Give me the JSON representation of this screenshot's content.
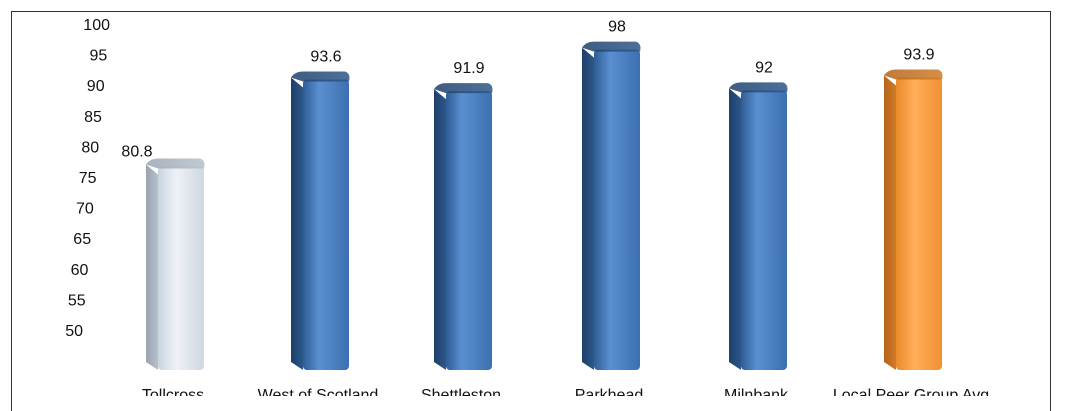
{
  "chart_data": {
    "type": "bar",
    "title": "",
    "xlabel": "",
    "ylabel": "",
    "categories": [
      "Tollcross",
      "West of Scotland",
      "Shettleston",
      "Parkhead",
      "Milnbank",
      "Local Peer Group Avg"
    ],
    "values": [
      80.8,
      93.6,
      91.9,
      98,
      92,
      93.9
    ],
    "data_labels": [
      "80.8",
      "93.6",
      "91.9",
      "98",
      "92",
      "93.9"
    ],
    "yticks": [
      "100",
      "95",
      "90",
      "85",
      "80",
      "75",
      "70",
      "65",
      "60",
      "55",
      "50"
    ],
    "ylim": [
      50,
      100
    ],
    "grid": false,
    "legend": "none",
    "colors": {
      "default": "#4f81bd",
      "highlight_first": "#dfe6ee",
      "highlight_last": "#f79a3e"
    }
  }
}
